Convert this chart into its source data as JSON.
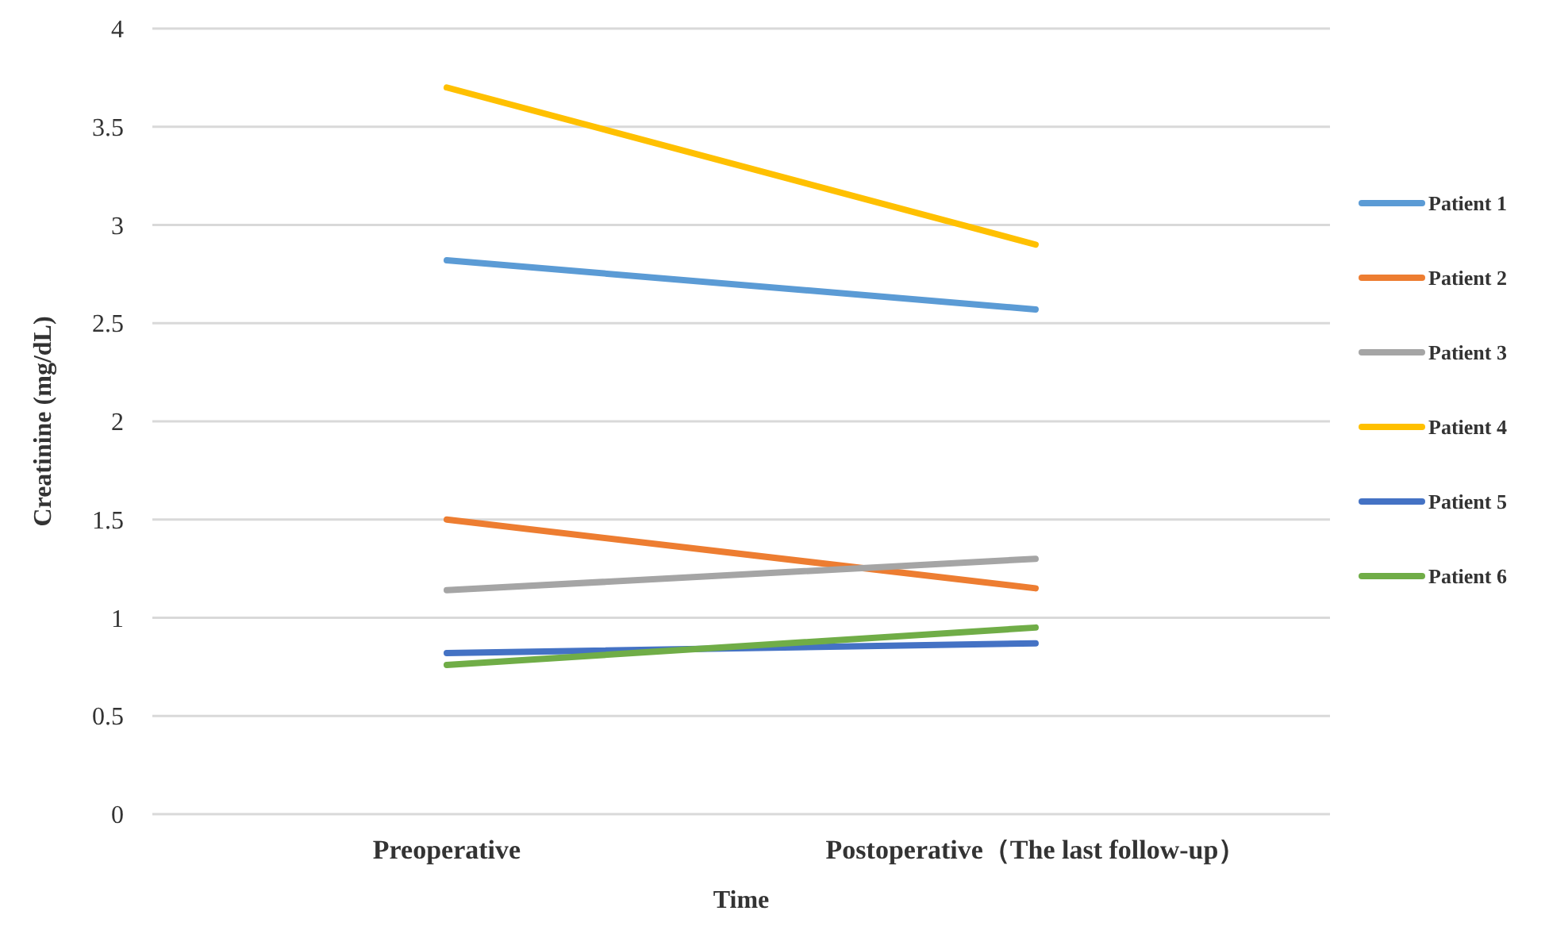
{
  "chart_data": {
    "type": "line",
    "xlabel": "Time",
    "ylabel": "Creatinine (mg/dL)",
    "categories": [
      "Preoperative",
      "Postoperative（The last follow-up）"
    ],
    "series": [
      {
        "name": "Patient 1",
        "color": "#5b9bd5",
        "values": [
          2.82,
          2.57
        ]
      },
      {
        "name": "Patient 2",
        "color": "#ed7d31",
        "values": [
          1.5,
          1.15
        ]
      },
      {
        "name": "Patient 3",
        "color": "#a5a5a5",
        "values": [
          1.14,
          1.3
        ]
      },
      {
        "name": "Patient 4",
        "color": "#ffc000",
        "values": [
          3.7,
          2.9
        ]
      },
      {
        "name": "Patient 5",
        "color": "#4472c4",
        "values": [
          0.82,
          0.87
        ]
      },
      {
        "name": "Patient 6",
        "color": "#70ad47",
        "values": [
          0.76,
          0.95
        ]
      }
    ],
    "ylim": [
      0,
      4
    ],
    "yticks": [
      0,
      0.5,
      1,
      1.5,
      2,
      2.5,
      3,
      3.5,
      4
    ],
    "grid": "y",
    "legend": "right",
    "marker": "none",
    "line_style": "solid"
  }
}
